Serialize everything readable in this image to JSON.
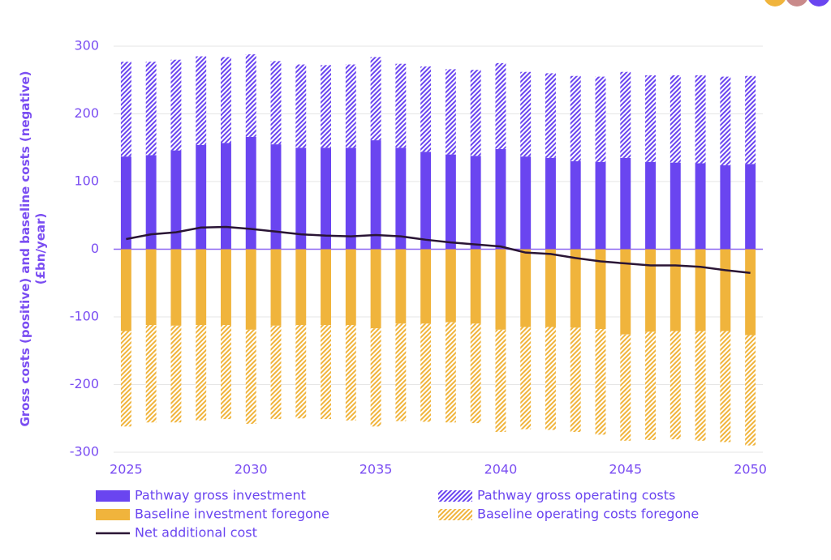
{
  "chart_data": {
    "type": "bar",
    "stacked": true,
    "ylabel": [
      "Gross costs (positive) and baseline costs (negative)",
      "(£bn/year)"
    ],
    "x": [
      2025,
      2026,
      2027,
      2028,
      2029,
      2030,
      2031,
      2032,
      2033,
      2034,
      2035,
      2036,
      2037,
      2038,
      2039,
      2040,
      2041,
      2042,
      2043,
      2044,
      2045,
      2046,
      2047,
      2048,
      2049,
      2050
    ],
    "xlim": [
      2024.5,
      2050.5
    ],
    "xticks": [
      2025,
      2030,
      2035,
      2040,
      2045,
      2050
    ],
    "ylim": [
      -300,
      300
    ],
    "yticks": [
      -300,
      -200,
      -100,
      0,
      100,
      200,
      300
    ],
    "grid": true,
    "series": [
      {
        "name": "Pathway gross investment",
        "type": "bar",
        "color": "#6a45f0",
        "hatch": false,
        "values": [
          137,
          139,
          146,
          154,
          157,
          166,
          155,
          150,
          150,
          150,
          161,
          150,
          144,
          140,
          138,
          148,
          137,
          135,
          130,
          129,
          135,
          129,
          128,
          127,
          124,
          126
        ]
      },
      {
        "name": "Pathway gross operating costs",
        "type": "bar",
        "color": "#6a45f0",
        "hatch": true,
        "values": [
          140,
          138,
          134,
          131,
          127,
          122,
          123,
          123,
          122,
          123,
          123,
          124,
          126,
          126,
          127,
          127,
          125,
          125,
          126,
          126,
          127,
          128,
          129,
          130,
          131,
          130
        ]
      },
      {
        "name": "Baseline investment foregone",
        "type": "bar",
        "color": "#f0b43c",
        "hatch": false,
        "values": [
          -121,
          -112,
          -113,
          -112,
          -112,
          -119,
          -113,
          -112,
          -112,
          -112,
          -117,
          -110,
          -110,
          -108,
          -110,
          -119,
          -115,
          -115,
          -116,
          -118,
          -126,
          -122,
          -121,
          -121,
          -121,
          -127
        ]
      },
      {
        "name": "Baseline operating costs foregone",
        "type": "bar",
        "color": "#f0b43c",
        "hatch": true,
        "values": [
          -141,
          -144,
          -143,
          -141,
          -139,
          -139,
          -138,
          -138,
          -139,
          -141,
          -145,
          -144,
          -145,
          -148,
          -147,
          -151,
          -151,
          -152,
          -154,
          -156,
          -157,
          -160,
          -160,
          -162,
          -164,
          -163
        ]
      },
      {
        "name": "Net additional cost",
        "type": "line",
        "color": "#2a1535",
        "hatch": false,
        "values": [
          15,
          22,
          25,
          32,
          33,
          30,
          26,
          22,
          20,
          19,
          21,
          19,
          14,
          10,
          7,
          4,
          -5,
          -7,
          -13,
          -18,
          -21,
          -24,
          -24,
          -26,
          -31,
          -35
        ]
      }
    ]
  }
}
